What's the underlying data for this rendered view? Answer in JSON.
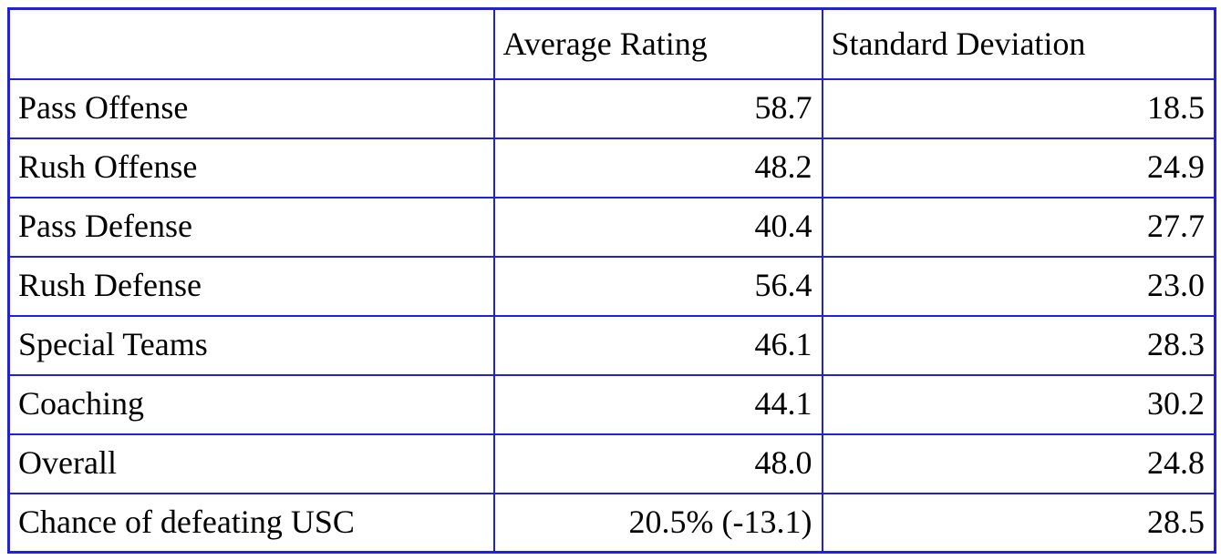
{
  "colors": {
    "border": "#2020dd",
    "text": "#000000",
    "background": "#ffffff"
  },
  "table": {
    "corner_label": "",
    "headers": [
      "",
      "Average Rating",
      "Standard Deviation"
    ],
    "rows": [
      {
        "label": "Pass Offense",
        "avg": "58.7",
        "sd": "18.5"
      },
      {
        "label": "Rush Offense",
        "avg": "48.2",
        "sd": "24.9"
      },
      {
        "label": "Pass Defense",
        "avg": "40.4",
        "sd": "27.7"
      },
      {
        "label": "Rush Defense",
        "avg": "56.4",
        "sd": "23.0"
      },
      {
        "label": "Special Teams",
        "avg": "46.1",
        "sd": "28.3"
      },
      {
        "label": "Coaching",
        "avg": "44.1",
        "sd": "30.2"
      },
      {
        "label": "Overall",
        "avg": "48.0",
        "sd": "24.8"
      },
      {
        "label": "Chance of defeating USC",
        "avg": "20.5% (-13.1)",
        "sd": "28.5"
      }
    ]
  },
  "chart_data": {
    "type": "table",
    "title": "",
    "columns": [
      "",
      "Average Rating",
      "Standard Deviation"
    ],
    "categories": [
      "Pass Offense",
      "Rush Offense",
      "Pass Defense",
      "Rush Defense",
      "Special Teams",
      "Coaching",
      "Overall",
      "Chance of defeating USC"
    ],
    "series": [
      {
        "name": "Average Rating",
        "values": [
          "58.7",
          "48.2",
          "40.4",
          "56.4",
          "46.1",
          "44.1",
          "48.0",
          "20.5% (-13.1)"
        ]
      },
      {
        "name": "Standard Deviation",
        "values": [
          18.5,
          24.9,
          27.7,
          23.0,
          28.3,
          30.2,
          24.8,
          28.5
        ]
      }
    ]
  }
}
